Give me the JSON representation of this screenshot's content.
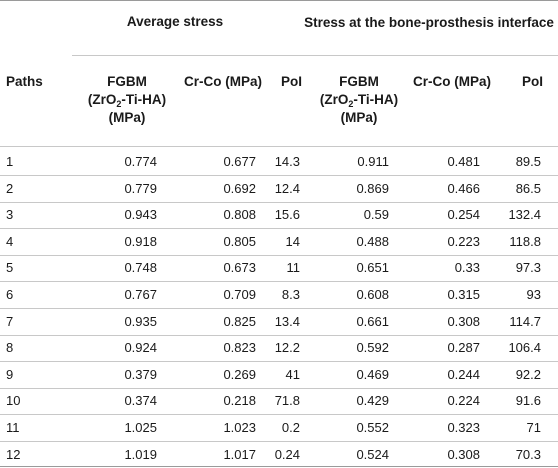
{
  "table": {
    "group_headers": {
      "average_stress": "Average stress",
      "interface_stress": "Stress at the bone-prosthesis interface"
    },
    "columns": {
      "paths": "Paths",
      "fgbm_line1": "FGBM",
      "fgbm_line2_pre": "(ZrO",
      "fgbm_line2_sub": "2",
      "fgbm_line2_post": "-Ti-HA)",
      "fgbm_line3": "(MPa)",
      "crco": "Cr-Co (MPa)",
      "poi": "PoI"
    },
    "rows": [
      {
        "path": "1",
        "avg_fgbm": "0.774",
        "avg_crco": "0.677",
        "avg_poi": "14.3",
        "int_fgbm": "0.911",
        "int_crco": "0.481",
        "int_poi": "89.5"
      },
      {
        "path": "2",
        "avg_fgbm": "0.779",
        "avg_crco": "0.692",
        "avg_poi": "12.4",
        "int_fgbm": "0.869",
        "int_crco": "0.466",
        "int_poi": "86.5"
      },
      {
        "path": "3",
        "avg_fgbm": "0.943",
        "avg_crco": "0.808",
        "avg_poi": "15.6",
        "int_fgbm": "0.59",
        "int_crco": "0.254",
        "int_poi": "132.4"
      },
      {
        "path": "4",
        "avg_fgbm": "0.918",
        "avg_crco": "0.805",
        "avg_poi": "14",
        "int_fgbm": "0.488",
        "int_crco": "0.223",
        "int_poi": "118.8"
      },
      {
        "path": "5",
        "avg_fgbm": "0.748",
        "avg_crco": "0.673",
        "avg_poi": "11",
        "int_fgbm": "0.651",
        "int_crco": "0.33",
        "int_poi": "97.3"
      },
      {
        "path": "6",
        "avg_fgbm": "0.767",
        "avg_crco": "0.709",
        "avg_poi": "8.3",
        "int_fgbm": "0.608",
        "int_crco": "0.315",
        "int_poi": "93"
      },
      {
        "path": "7",
        "avg_fgbm": "0.935",
        "avg_crco": "0.825",
        "avg_poi": "13.4",
        "int_fgbm": "0.661",
        "int_crco": "0.308",
        "int_poi": "114.7"
      },
      {
        "path": "8",
        "avg_fgbm": "0.924",
        "avg_crco": "0.823",
        "avg_poi": "12.2",
        "int_fgbm": "0.592",
        "int_crco": "0.287",
        "int_poi": "106.4"
      },
      {
        "path": "9",
        "avg_fgbm": "0.379",
        "avg_crco": "0.269",
        "avg_poi": "41",
        "int_fgbm": "0.469",
        "int_crco": "0.244",
        "int_poi": "92.2"
      },
      {
        "path": "10",
        "avg_fgbm": "0.374",
        "avg_crco": "0.218",
        "avg_poi": "71.8",
        "int_fgbm": "0.429",
        "int_crco": "0.224",
        "int_poi": "91.6"
      },
      {
        "path": "11",
        "avg_fgbm": "1.025",
        "avg_crco": "1.023",
        "avg_poi": "0.2",
        "int_fgbm": "0.552",
        "int_crco": "0.323",
        "int_poi": "71"
      },
      {
        "path": "12",
        "avg_fgbm": "1.019",
        "avg_crco": "1.017",
        "avg_poi": "0.24",
        "int_fgbm": "0.524",
        "int_crco": "0.308",
        "int_poi": "70.3"
      }
    ]
  }
}
